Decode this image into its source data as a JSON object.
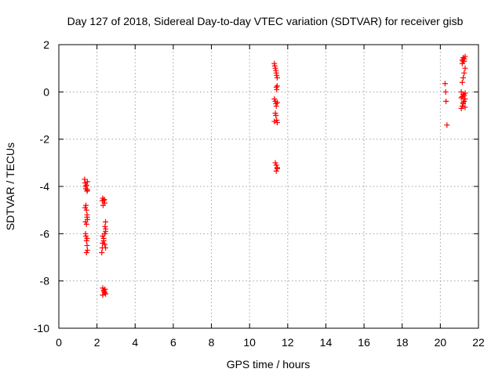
{
  "chart_data": {
    "type": "scatter",
    "title": "Day 127 of 2018, Sidereal Day-to-day VTEC variation (SDTVAR) for receiver gisb",
    "xlabel": "GPS time / hours",
    "ylabel": "SDTVAR / TECUs",
    "xlim": [
      0,
      22
    ],
    "ylim": [
      -10,
      2
    ],
    "xticks": [
      0,
      2,
      4,
      6,
      8,
      10,
      12,
      14,
      16,
      18,
      20,
      22
    ],
    "yticks": [
      -10,
      -8,
      -6,
      -4,
      -2,
      0,
      2
    ],
    "grid": true,
    "marker": "+",
    "color": "#ff0000",
    "series": [
      {
        "name": "SDTVAR",
        "x": [
          1.35,
          1.38,
          1.4,
          1.42,
          1.45,
          1.48,
          1.5,
          1.42,
          1.45,
          1.48,
          1.5,
          1.38,
          1.4,
          1.45,
          1.48,
          1.4,
          1.42,
          1.45,
          1.48,
          1.5,
          1.45,
          1.48,
          1.5,
          2.25,
          2.28,
          2.3,
          2.35,
          2.4,
          2.45,
          2.3,
          2.35,
          2.4,
          2.28,
          2.32,
          2.38,
          2.42,
          2.45,
          2.3,
          2.35,
          2.4,
          2.45,
          2.42,
          2.45,
          2.3,
          2.35,
          2.4,
          2.45,
          2.3,
          2.38,
          2.42,
          11.3,
          11.32,
          11.35,
          11.38,
          11.4,
          11.42,
          11.45,
          11.4,
          11.42,
          11.45,
          11.3,
          11.35,
          11.38,
          11.4,
          11.45,
          11.35,
          11.38,
          11.42,
          11.45,
          11.3,
          11.35,
          11.4,
          11.45,
          11.4,
          11.45,
          20.25,
          20.28,
          20.3,
          20.35,
          21.1,
          21.15,
          21.2,
          21.25,
          21.3,
          21.15,
          21.2,
          21.25,
          21.3,
          21.1,
          21.15,
          21.2,
          21.25,
          21.3,
          21.15,
          21.2,
          21.25,
          21.3,
          21.15,
          21.2,
          21.25,
          21.3,
          21.1,
          21.2
        ],
        "y": [
          -3.7,
          -3.85,
          -4.0,
          -4.1,
          -3.95,
          -4.2,
          -3.8,
          -4.8,
          -5.0,
          -5.2,
          -5.4,
          -4.9,
          -5.5,
          -5.6,
          -5.3,
          -6.0,
          -6.1,
          -6.3,
          -6.5,
          -6.7,
          -6.8,
          -6.2,
          -4.15,
          -6.8,
          -6.6,
          -6.4,
          -6.2,
          -6.0,
          -5.9,
          -4.5,
          -4.6,
          -4.7,
          -4.6,
          -4.8,
          -4.55,
          -5.7,
          -5.5,
          -6.1,
          -6.3,
          -6.45,
          -6.6,
          -6.0,
          -5.8,
          -8.3,
          -8.4,
          -8.5,
          -8.55,
          -8.6,
          -8.45,
          -8.35,
          1.2,
          1.1,
          1.0,
          0.9,
          0.8,
          0.7,
          0.6,
          0.2,
          0.1,
          0.25,
          -0.3,
          -0.4,
          -0.5,
          -0.6,
          -0.45,
          -0.9,
          -1.0,
          -1.2,
          -1.3,
          -1.25,
          -3.0,
          -3.1,
          -3.2,
          -3.35,
          -3.25,
          0.35,
          0.0,
          -0.4,
          -1.4,
          -0.7,
          -0.6,
          -0.5,
          -0.4,
          -0.3,
          -0.2,
          -0.1,
          -0.15,
          -0.05,
          0.0,
          0.4,
          0.6,
          0.8,
          1.0,
          1.2,
          1.3,
          1.4,
          1.5,
          1.35,
          1.45,
          1.3,
          -0.65,
          -0.25,
          -0.45
        ]
      }
    ]
  }
}
